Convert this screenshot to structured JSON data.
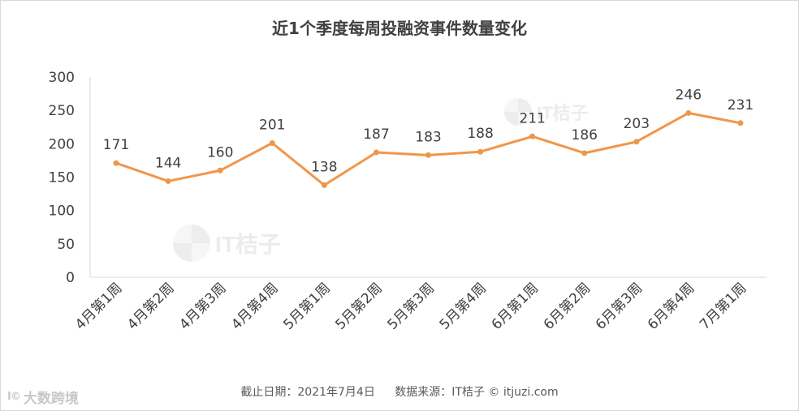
{
  "title": "近1个季度每周投融资事件数量变化",
  "footer": {
    "date_text": "截止日期：2021年7月4日",
    "source_text": "数据来源：IT桔子 © itjuzi.com"
  },
  "brand": {
    "mark": "I©",
    "name": "大数跨境"
  },
  "watermark_text": "IT桔子",
  "chart_data": {
    "type": "line",
    "title": "近1个季度每周投融资事件数量变化",
    "categories": [
      "4月第1周",
      "4月第2周",
      "4月第3周",
      "4月第4周",
      "5月第1周",
      "5月第2周",
      "5月第3周",
      "5月第4周",
      "6月第1周",
      "6月第2周",
      "6月第3周",
      "6月第4周",
      "7月第1周"
    ],
    "values": [
      171,
      144,
      160,
      201,
      138,
      187,
      183,
      188,
      211,
      186,
      203,
      246,
      231
    ],
    "ylim": [
      0,
      300
    ],
    "yticks": [
      0,
      50,
      100,
      150,
      200,
      250,
      300
    ],
    "xlabel": "",
    "ylabel": "",
    "grid": false,
    "legend": "none",
    "color": "#F0964A",
    "data_labels": true
  }
}
